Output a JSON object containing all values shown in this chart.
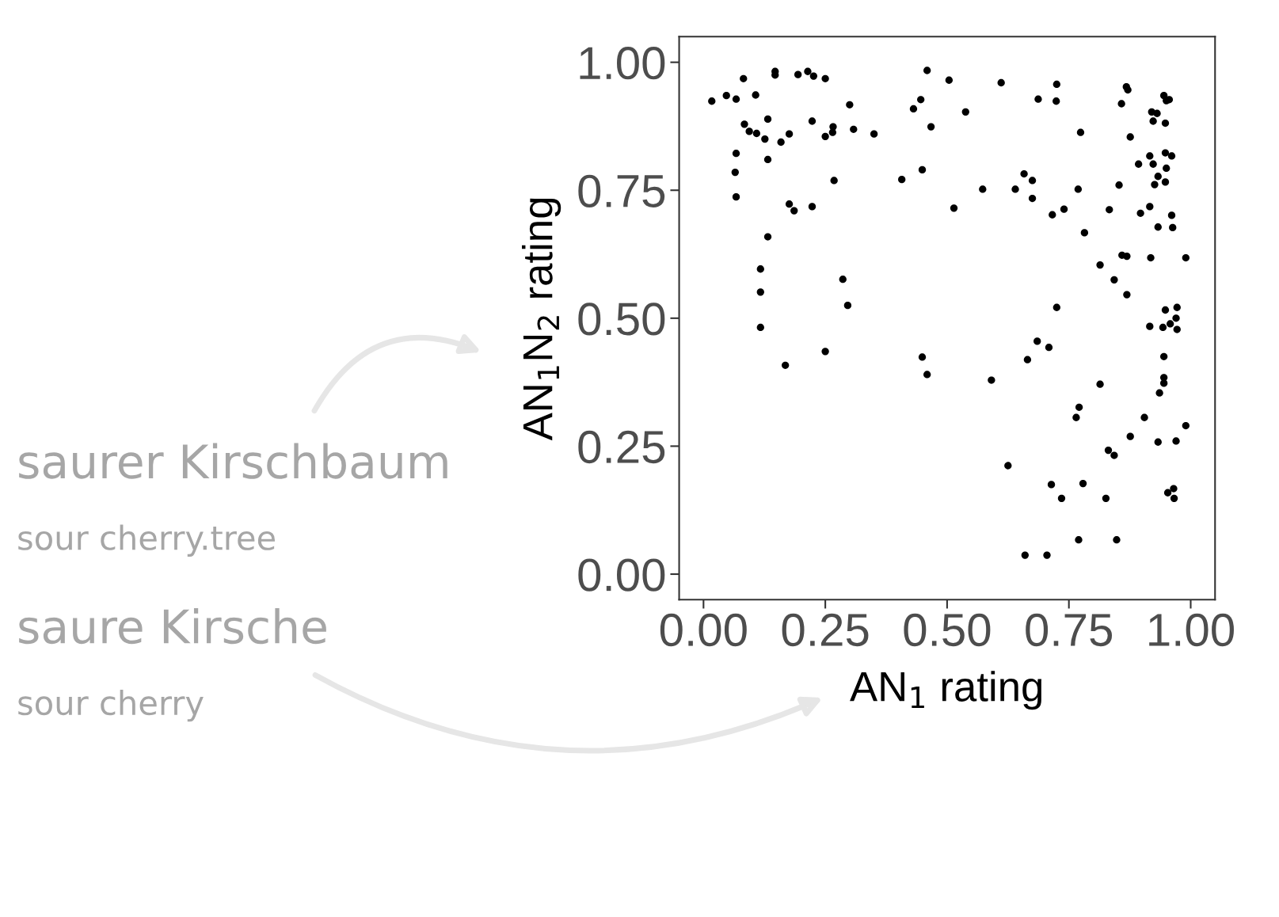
{
  "chart_data": {
    "type": "scatter",
    "xlabel": "AN$_{1}$ rating",
    "ylabel": "AN$_{1}$N$_{2}$ rating",
    "xlim": [
      -0.05,
      1.05
    ],
    "ylim": [
      -0.05,
      1.05
    ],
    "xticks": [
      {
        "value": 0,
        "label": "0.00"
      },
      {
        "value": 0.25,
        "label": "0.25"
      },
      {
        "value": 0.5,
        "label": "0.50"
      },
      {
        "value": 0.75,
        "label": "0.75"
      },
      {
        "value": 1,
        "label": "1.00"
      }
    ],
    "yticks": [
      {
        "value": 0,
        "label": "0.00"
      },
      {
        "value": 0.25,
        "label": "0.25"
      },
      {
        "value": 0.5,
        "label": "0.50"
      },
      {
        "value": 0.75,
        "label": "0.75"
      },
      {
        "value": 1,
        "label": "1.00"
      }
    ],
    "grid": false,
    "marker": "circle",
    "annotations": [
      "saurer Kirschbaum",
      "sour cherry.tree",
      "saure Kirsche",
      "sour cherry"
    ],
    "series": [
      {
        "color": "#000000",
        "x": [
          0.017,
          0.047,
          0.067,
          0.082,
          0.107,
          0.147,
          0.147,
          0.194,
          0.214,
          0.226,
          0.25,
          0.132,
          0.084,
          0.094,
          0.109,
          0.126,
          0.159,
          0.176,
          0.067,
          0.132,
          0.065,
          0.067,
          0.223,
          0.3,
          0.266,
          0.265,
          0.25,
          0.308,
          0.35,
          0.268,
          0.176,
          0.186,
          0.223,
          0.132,
          0.117,
          0.117,
          0.117,
          0.168,
          0.286,
          0.296,
          0.25,
          0.459,
          0.504,
          0.446,
          0.431,
          0.467,
          0.538,
          0.611,
          0.407,
          0.449,
          0.514,
          0.573,
          0.449,
          0.459,
          0.725,
          0.687,
          0.724,
          0.774,
          0.658,
          0.675,
          0.64,
          0.675,
          0.74,
          0.716,
          0.769,
          0.782,
          0.725,
          0.685,
          0.709,
          0.665,
          0.591,
          0.625,
          0.714,
          0.735,
          0.779,
          0.771,
          0.765,
          0.814,
          0.77,
          0.66,
          0.705,
          0.826,
          0.831,
          0.843,
          0.848,
          0.876,
          0.905,
          0.933,
          0.97,
          0.99,
          0.953,
          0.965,
          0.966,
          0.868,
          0.871,
          0.858,
          0.945,
          0.95,
          0.956,
          0.92,
          0.931,
          0.923,
          0.948,
          0.876,
          0.948,
          0.961,
          0.916,
          0.893,
          0.923,
          0.95,
          0.933,
          0.926,
          0.948,
          0.853,
          0.833,
          0.916,
          0.897,
          0.961,
          0.933,
          0.963,
          0.859,
          0.869,
          0.918,
          0.99,
          0.814,
          0.843,
          0.869,
          0.948,
          0.972,
          0.97,
          0.958,
          0.943,
          0.916,
          0.972,
          0.945,
          0.945,
          0.945,
          0.936
        ],
        "values": [
          0.924,
          0.935,
          0.928,
          0.968,
          0.936,
          0.982,
          0.975,
          0.976,
          0.982,
          0.973,
          0.968,
          0.889,
          0.879,
          0.865,
          0.861,
          0.85,
          0.844,
          0.86,
          0.822,
          0.81,
          0.785,
          0.737,
          0.885,
          0.917,
          0.874,
          0.863,
          0.855,
          0.869,
          0.86,
          0.769,
          0.723,
          0.71,
          0.718,
          0.659,
          0.596,
          0.551,
          0.482,
          0.408,
          0.576,
          0.525,
          0.435,
          0.984,
          0.965,
          0.927,
          0.909,
          0.874,
          0.903,
          0.96,
          0.771,
          0.79,
          0.715,
          0.752,
          0.424,
          0.39,
          0.957,
          0.928,
          0.924,
          0.863,
          0.782,
          0.769,
          0.752,
          0.734,
          0.713,
          0.702,
          0.752,
          0.667,
          0.521,
          0.455,
          0.443,
          0.419,
          0.379,
          0.212,
          0.175,
          0.148,
          0.177,
          0.326,
          0.306,
          0.371,
          0.067,
          0.037,
          0.037,
          0.148,
          0.242,
          0.232,
          0.067,
          0.269,
          0.306,
          0.258,
          0.26,
          0.29,
          0.159,
          0.167,
          0.148,
          0.952,
          0.946,
          0.919,
          0.935,
          0.925,
          0.927,
          0.903,
          0.9,
          0.885,
          0.881,
          0.854,
          0.823,
          0.817,
          0.817,
          0.801,
          0.801,
          0.793,
          0.777,
          0.761,
          0.766,
          0.76,
          0.712,
          0.718,
          0.705,
          0.701,
          0.678,
          0.677,
          0.623,
          0.621,
          0.618,
          0.618,
          0.604,
          0.575,
          0.546,
          0.516,
          0.521,
          0.5,
          0.489,
          0.482,
          0.484,
          0.478,
          0.425,
          0.384,
          0.373,
          0.354
        ]
      }
    ]
  }
}
